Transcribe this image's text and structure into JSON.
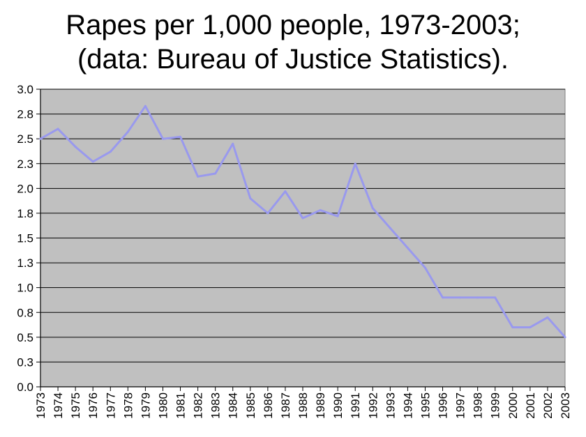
{
  "chart_data": {
    "type": "line",
    "title": "Rapes per 1,000 people, 1973-2003;",
    "subtitle": "(data: Bureau of Justice Statistics).",
    "xlabel": "",
    "ylabel": "",
    "ylim": [
      0,
      3.0
    ],
    "yticks": [
      "0.0",
      "0.3",
      "0.5",
      "0.8",
      "1.0",
      "1.3",
      "1.5",
      "1.8",
      "2.0",
      "2.3",
      "2.5",
      "2.8",
      "3.0"
    ],
    "grid": true,
    "legend": "none",
    "categories": [
      "1973",
      "1974",
      "1975",
      "1976",
      "1977",
      "1978",
      "1979",
      "1980",
      "1981",
      "1982",
      "1983",
      "1984",
      "1985",
      "1986",
      "1987",
      "1988",
      "1989",
      "1990",
      "1991",
      "1992",
      "1993",
      "1994",
      "1995",
      "1996",
      "1997",
      "1998",
      "1999",
      "2000",
      "2001",
      "2002",
      "2003"
    ],
    "series": [
      {
        "values": [
          2.5,
          2.6,
          2.42,
          2.27,
          2.37,
          2.57,
          2.83,
          2.5,
          2.52,
          2.12,
          2.15,
          2.45,
          1.9,
          1.75,
          1.97,
          1.7,
          1.78,
          1.72,
          2.25,
          1.8,
          1.6,
          1.4,
          1.2,
          0.9,
          0.9,
          0.9,
          0.9,
          0.6,
          0.6,
          0.7,
          0.5
        ]
      }
    ],
    "colors": {
      "line": "#9999ee",
      "plot_background": "#c0c0c0",
      "gridline": "#000000"
    }
  }
}
